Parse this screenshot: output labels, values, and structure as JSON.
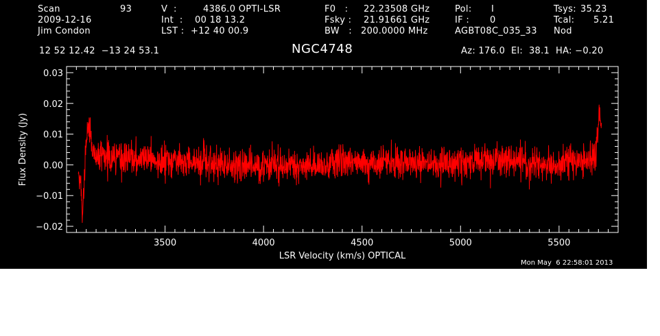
{
  "header": {
    "row1": [
      {
        "label": "Scan",
        "value": "93"
      },
      {
        "label": "V  :",
        "value": "4386.0 OPTI-LSR"
      },
      {
        "label": "F0   :",
        "value": "22.23508 GHz"
      },
      {
        "label": "Pol:",
        "value": "I"
      },
      {
        "label": "Tsys:",
        "value": "35.23"
      }
    ],
    "row2": [
      {
        "text": "2009-12-16"
      },
      {
        "label": "Int  :",
        "value": "00 18 13.2"
      },
      {
        "label": "Fsky :",
        "value": "21.91661 GHz"
      },
      {
        "label": "IF :",
        "value": "0"
      },
      {
        "label": "Tcal:",
        "value": "5.21"
      }
    ],
    "row3": [
      {
        "text": "Jim Condon"
      },
      {
        "label": "LST :",
        "value": "+12 40 00.9"
      },
      {
        "label": "BW   :",
        "value": "200.0000 MHz"
      },
      {
        "text": "AGBT08C_035_33"
      },
      {
        "text": "Nod"
      }
    ],
    "coords": "12 52 12.42  −13 24 53.1",
    "source": "NGC4748",
    "pointing": "Az: 176.0  El:  38.1  HA: −0.20",
    "timestamp": "Mon May  6 22:58:01 2013"
  },
  "chart_data": {
    "type": "line",
    "title": "NGC4748",
    "xlabel": "LSR Velocity (km/s) OPTICAL",
    "ylabel": "Flux Density (Jy)",
    "xlim": [
      3000,
      5800
    ],
    "ylim": [
      -0.022,
      0.032
    ],
    "xticks": [
      3500,
      4000,
      4500,
      5000,
      5500
    ],
    "xtick_labels": [
      "3500",
      "4000",
      "4500",
      "5000",
      "5500"
    ],
    "yticks": [
      -0.02,
      -0.01,
      0.0,
      0.01,
      0.02,
      0.03
    ],
    "ytick_labels": [
      "−0.02",
      "−0.01",
      "0.00",
      "0.01",
      "0.02",
      "0.03"
    ],
    "grid": false,
    "legend": "none",
    "series": [
      {
        "color": "#ff0000",
        "x_start": 3060,
        "x_end": 5715,
        "noise_std_jy": 0.0035,
        "points": [
          [
            3060,
            -0.002
          ],
          [
            3068,
            -0.004
          ],
          [
            3075,
            -0.008
          ],
          [
            3080,
            -0.016
          ],
          [
            3085,
            -0.013
          ],
          [
            3090,
            -0.004
          ],
          [
            3095,
            0.002
          ],
          [
            3100,
            0.006
          ],
          [
            3105,
            0.01
          ],
          [
            3110,
            0.012
          ],
          [
            3115,
            0.009
          ],
          [
            3120,
            0.013
          ],
          [
            3125,
            0.008
          ],
          [
            3130,
            0.006
          ],
          [
            3140,
            0.004
          ],
          [
            3200,
            0.003
          ],
          [
            3300,
            0.002
          ],
          [
            3400,
            0.002
          ],
          [
            3500,
            0.001
          ],
          [
            3600,
            0.001
          ],
          [
            3700,
            0.001
          ],
          [
            3800,
            0.0
          ],
          [
            3900,
            0.0
          ],
          [
            4000,
            0.0
          ],
          [
            4100,
            0.0
          ],
          [
            4200,
            0.0
          ],
          [
            4300,
            0.0
          ],
          [
            4400,
            0.001
          ],
          [
            4500,
            0.001
          ],
          [
            4600,
            0.001
          ],
          [
            4700,
            0.001
          ],
          [
            4800,
            0.001
          ],
          [
            4900,
            0.0
          ],
          [
            5000,
            0.001
          ],
          [
            5100,
            0.001
          ],
          [
            5200,
            0.001
          ],
          [
            5300,
            0.001
          ],
          [
            5400,
            0.0
          ],
          [
            5500,
            0.0
          ],
          [
            5600,
            0.001
          ],
          [
            5650,
            0.001
          ],
          [
            5670,
            0.002
          ],
          [
            5685,
            0.004
          ],
          [
            5690,
            0.006
          ],
          [
            5695,
            0.01
          ],
          [
            5700,
            0.014
          ],
          [
            5705,
            0.018
          ],
          [
            5710,
            0.016
          ],
          [
            5715,
            0.012
          ]
        ]
      }
    ]
  }
}
